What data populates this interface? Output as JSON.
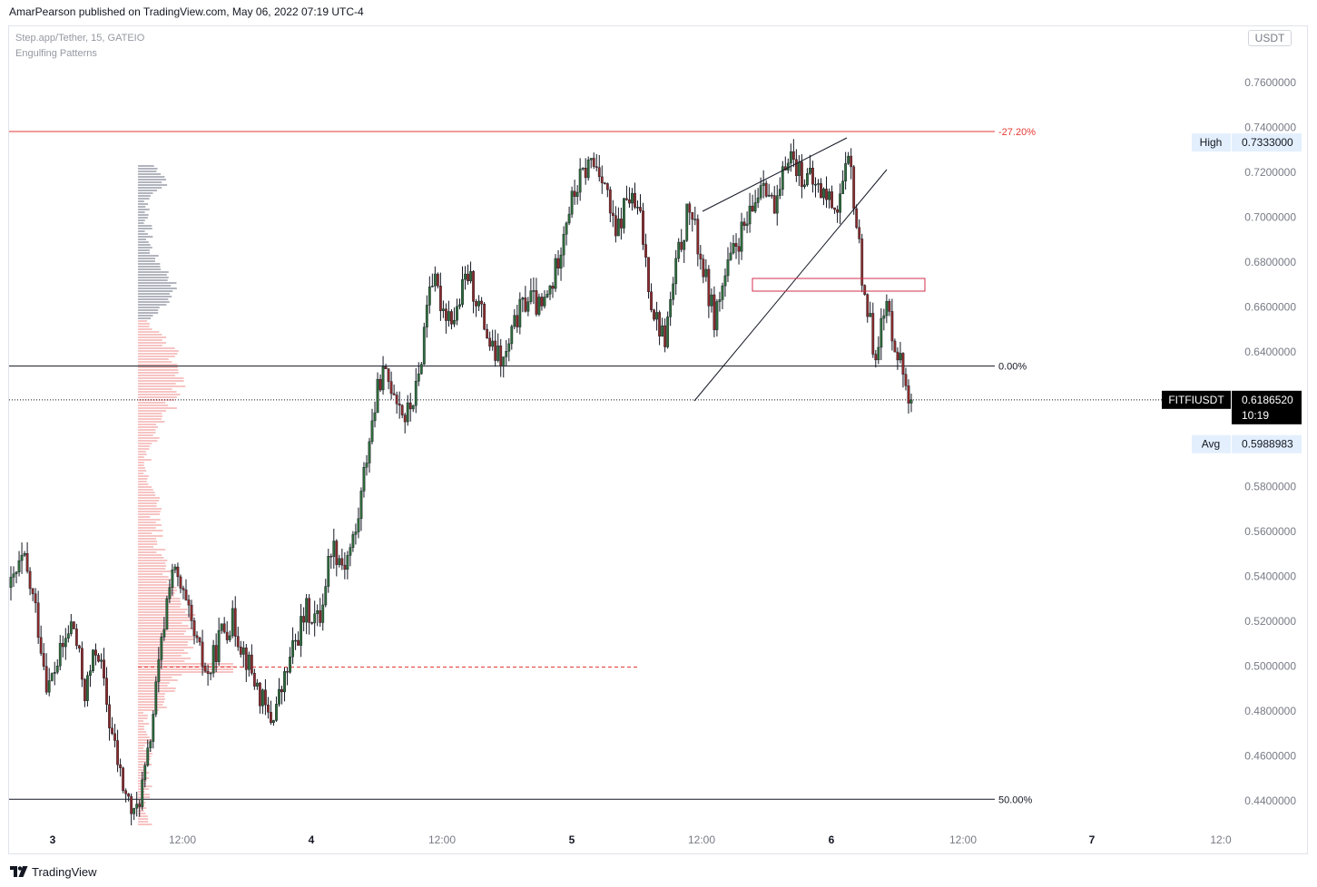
{
  "header": {
    "publisher_line": "AmarPearson published on TradingView.com, May 06, 2022 07:19 UTC-4"
  },
  "legend": {
    "symbol_line": "Step.app/Tether, 15, GATEIO",
    "indicator": "Engulfing Patterns"
  },
  "currency_button": "USDT",
  "footer": {
    "brand": "TradingView"
  },
  "colors": {
    "up": "#2e6b3a",
    "down": "#8b2b2b",
    "wick": "#131722",
    "fib_red": "#e53935",
    "fib_black": "#131722",
    "vp_up": "#b2b5be",
    "vp_down": "#f7c4c4",
    "poc": "#e53935",
    "rect": "#d32f4f",
    "axis_text": "#787b86"
  },
  "chart_data": {
    "type": "candlestick",
    "symbol": "FITFIUSDT",
    "timeframe": "15",
    "exchange": "GATEIO",
    "price_axis": {
      "ticks": [
        "0.7600000",
        "0.7400000",
        "0.7200000",
        "0.7000000",
        "0.6800000",
        "0.6600000",
        "0.6400000",
        "0.5800000",
        "0.5600000",
        "0.5400000",
        "0.5200000",
        "0.5000000",
        "0.4800000",
        "0.4600000",
        "0.4400000"
      ],
      "ylim": [
        0.43,
        0.785
      ]
    },
    "time_axis": {
      "ticks": [
        "3",
        "12:00",
        "4",
        "12:00",
        "5",
        "12:00",
        "6",
        "12:00",
        "7",
        "12:0"
      ]
    },
    "series_path_close": [
      [
        0,
        0.535
      ],
      [
        0.5,
        0.548
      ],
      [
        1.0,
        0.525
      ],
      [
        1.5,
        0.49
      ],
      [
        2.0,
        0.505
      ],
      [
        2.5,
        0.52
      ],
      [
        3.0,
        0.488
      ],
      [
        3.5,
        0.51
      ],
      [
        4.0,
        0.475
      ],
      [
        4.5,
        0.448
      ],
      [
        5.0,
        0.432
      ],
      [
        5.5,
        0.455
      ],
      [
        6.0,
        0.5
      ],
      [
        6.5,
        0.545
      ],
      [
        7.0,
        0.53
      ],
      [
        7.5,
        0.51
      ],
      [
        8.0,
        0.495
      ],
      [
        8.5,
        0.515
      ],
      [
        9.0,
        0.52
      ],
      [
        9.5,
        0.505
      ],
      [
        10.0,
        0.49
      ],
      [
        10.5,
        0.475
      ],
      [
        11.0,
        0.49
      ],
      [
        11.5,
        0.51
      ],
      [
        12.0,
        0.525
      ],
      [
        12.5,
        0.52
      ],
      [
        13.0,
        0.555
      ],
      [
        13.5,
        0.545
      ],
      [
        14.0,
        0.56
      ],
      [
        14.5,
        0.6
      ],
      [
        15.0,
        0.63
      ],
      [
        15.5,
        0.625
      ],
      [
        16.0,
        0.61
      ],
      [
        16.5,
        0.625
      ],
      [
        17.0,
        0.675
      ],
      [
        17.5,
        0.66
      ],
      [
        18.0,
        0.655
      ],
      [
        18.5,
        0.675
      ],
      [
        19.0,
        0.66
      ],
      [
        19.5,
        0.64
      ],
      [
        20.0,
        0.635
      ],
      [
        20.5,
        0.655
      ],
      [
        21.0,
        0.665
      ],
      [
        21.5,
        0.658
      ],
      [
        22.0,
        0.672
      ],
      [
        22.5,
        0.7
      ],
      [
        23.0,
        0.715
      ],
      [
        23.5,
        0.725
      ],
      [
        24.0,
        0.72
      ],
      [
        24.5,
        0.69
      ],
      [
        25.0,
        0.71
      ],
      [
        25.5,
        0.7
      ],
      [
        26.0,
        0.66
      ],
      [
        26.5,
        0.645
      ],
      [
        27.0,
        0.68
      ],
      [
        27.5,
        0.705
      ],
      [
        28.0,
        0.68
      ],
      [
        28.5,
        0.655
      ],
      [
        29.0,
        0.675
      ],
      [
        29.5,
        0.69
      ],
      [
        30.0,
        0.7
      ],
      [
        30.5,
        0.72
      ],
      [
        31.0,
        0.7
      ],
      [
        31.5,
        0.73
      ],
      [
        32.0,
        0.72
      ],
      [
        32.5,
        0.715
      ],
      [
        33.0,
        0.71
      ],
      [
        33.5,
        0.705
      ],
      [
        34.0,
        0.725
      ],
      [
        34.5,
        0.675
      ],
      [
        35.0,
        0.64
      ],
      [
        35.5,
        0.66
      ],
      [
        36.0,
        0.638
      ],
      [
        36.5,
        0.6186
      ]
    ],
    "levels": [
      {
        "label": "-27.20%",
        "price": 0.7382,
        "color": "red"
      },
      {
        "label": "0.00%",
        "price": 0.6337,
        "color": "black"
      },
      {
        "label": "50.00%",
        "price": 0.4407,
        "color": "black"
      }
    ],
    "poc_price": 0.4996,
    "current_price_line": 0.618652,
    "markers": [
      {
        "label": "High",
        "value": "0.7333000",
        "price": 0.7333
      },
      {
        "label": "FITFIUSDT",
        "value": "0.6186520",
        "sub": "10:19",
        "price": 0.618652
      },
      {
        "label": "Avg",
        "value": "0.5988983",
        "price": 0.5988983
      }
    ],
    "grid": false,
    "volume_profile": true
  }
}
